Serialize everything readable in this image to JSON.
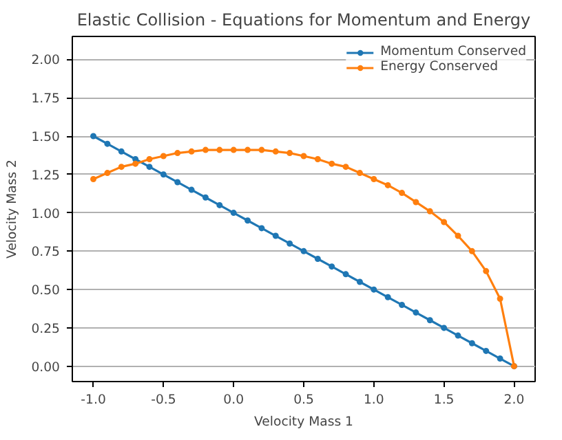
{
  "chart_data": {
    "type": "line",
    "title": "Elastic Collision - Equations for Momentum and Energy",
    "xlabel": "Velocity Mass 1",
    "ylabel": "Velocity Mass 2",
    "x": [
      -1.0,
      -0.9,
      -0.8,
      -0.7,
      -0.6,
      -0.5,
      -0.4,
      -0.3,
      -0.2,
      -0.1,
      0.0,
      0.1,
      0.2,
      0.3,
      0.4,
      0.5,
      0.6,
      0.7,
      0.8,
      0.9,
      1.0,
      1.1,
      1.2,
      1.3,
      1.4,
      1.5,
      1.6,
      1.7,
      1.8,
      1.9,
      2.0
    ],
    "series": [
      {
        "name": "Momentum Conserved",
        "color": "#1f77b4",
        "values": [
          1.5,
          1.45,
          1.4,
          1.35,
          1.3,
          1.25,
          1.2,
          1.15,
          1.1,
          1.05,
          1.0,
          0.95,
          0.9,
          0.85,
          0.8,
          0.75,
          0.7,
          0.65,
          0.6,
          0.55,
          0.5,
          0.45,
          0.4,
          0.35,
          0.3,
          0.25,
          0.2,
          0.15,
          0.1,
          0.05,
          0.0
        ]
      },
      {
        "name": "Energy Conserved",
        "color": "#ff7f0e",
        "values": [
          1.22,
          1.26,
          1.3,
          1.32,
          1.35,
          1.37,
          1.39,
          1.4,
          1.41,
          1.41,
          1.41,
          1.41,
          1.41,
          1.4,
          1.39,
          1.37,
          1.35,
          1.32,
          1.3,
          1.26,
          1.22,
          1.18,
          1.13,
          1.07,
          1.01,
          0.94,
          0.85,
          0.75,
          0.62,
          0.44,
          0.0
        ]
      }
    ],
    "xlim": [
      -1.15,
      2.15
    ],
    "ylim": [
      -0.1,
      2.15
    ],
    "xticks": [
      {
        "value": -1,
        "label": "-1.0"
      },
      -0.5,
      {
        "value": 0,
        "label": "0.0"
      },
      0.5,
      {
        "value": 1,
        "label": "1.0"
      },
      1.5,
      {
        "value": 2,
        "label": "2.0"
      }
    ],
    "yticks": [
      {
        "value": 0,
        "label": "0.00"
      },
      {
        "value": 0.25,
        "label": "0.25"
      },
      {
        "value": 0.5,
        "label": "0.50"
      },
      {
        "value": 0.75,
        "label": "0.75"
      },
      {
        "value": 1.0,
        "label": "1.00"
      },
      {
        "value": 1.25,
        "label": "1.25"
      },
      {
        "value": 1.5,
        "label": "1.50"
      },
      {
        "value": 1.75,
        "label": "1.75"
      },
      {
        "value": 2.0,
        "label": "2.00"
      }
    ],
    "grid": "y",
    "legend": "top right",
    "marker": "circle",
    "line_style": "solid"
  }
}
